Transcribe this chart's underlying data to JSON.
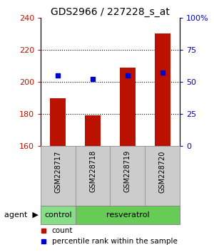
{
  "title": "GDS2966 / 227228_s_at",
  "samples": [
    "GSM228717",
    "GSM228718",
    "GSM228719",
    "GSM228720"
  ],
  "counts": [
    190,
    179,
    209,
    230
  ],
  "percentiles": [
    55,
    52,
    55,
    57
  ],
  "ylim_left": [
    160,
    240
  ],
  "ylim_right": [
    0,
    100
  ],
  "yticks_left": [
    160,
    180,
    200,
    220,
    240
  ],
  "yticks_right": [
    0,
    25,
    50,
    75,
    100
  ],
  "bar_color": "#bb1100",
  "dot_color": "#0000cc",
  "bar_width": 0.45,
  "groups": [
    {
      "label": "control",
      "n_samples": 1,
      "color": "#88dd88"
    },
    {
      "label": "resveratrol",
      "n_samples": 3,
      "color": "#66cc55"
    }
  ],
  "group_row_label": "agent",
  "legend_count_label": "count",
  "legend_pct_label": "percentile rank within the sample",
  "bg_color": "#ffffff",
  "plot_bg": "#ffffff",
  "sample_label_bg": "#cccccc",
  "title_fontsize": 10,
  "tick_fontsize": 8,
  "sample_fontsize": 7,
  "group_fontsize": 8
}
